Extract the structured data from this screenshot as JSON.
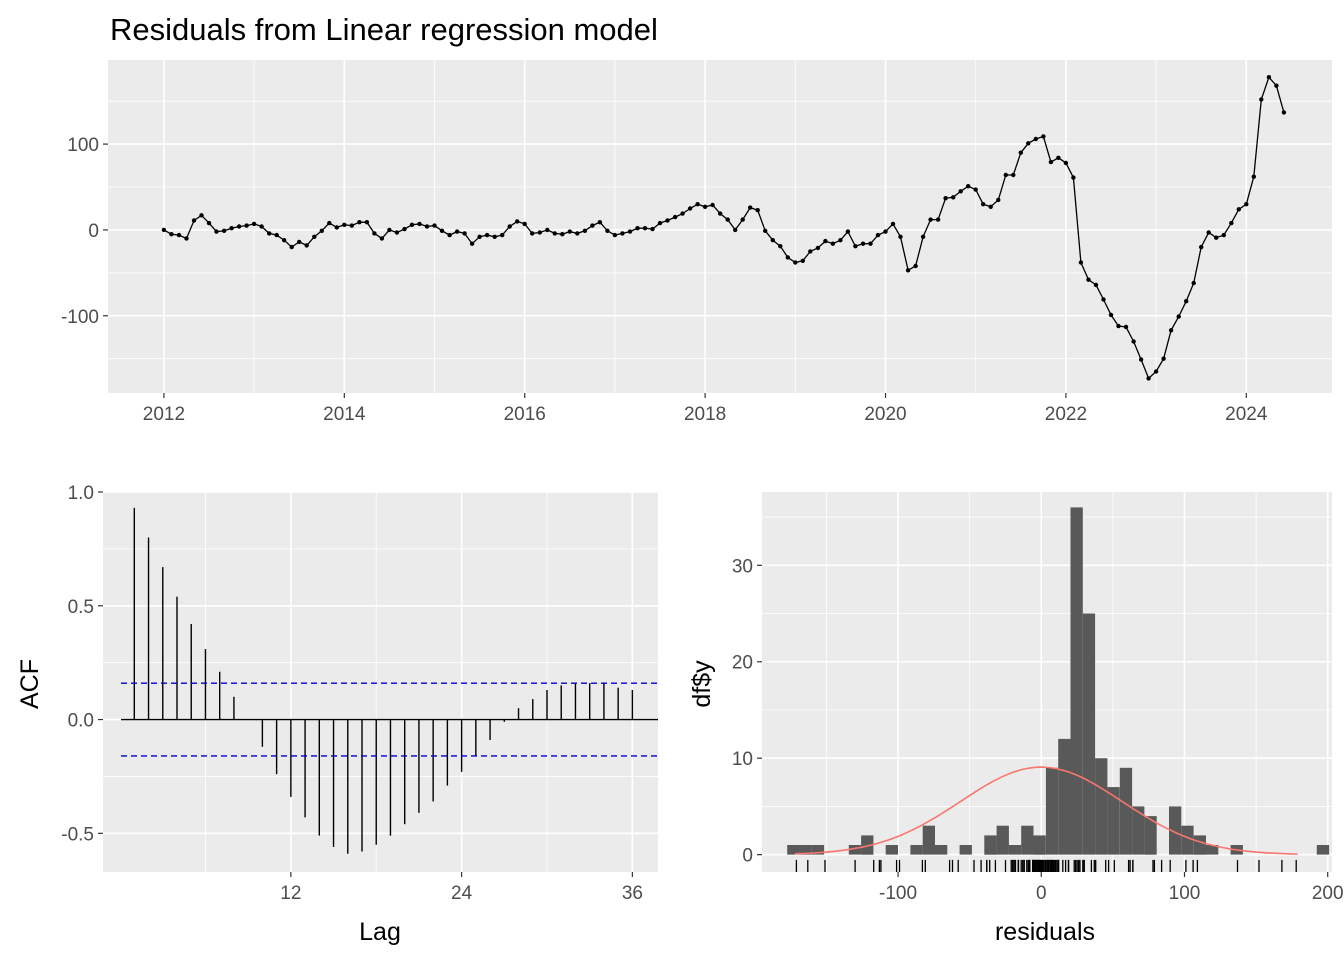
{
  "chart_data": [
    {
      "type": "line",
      "title": "Residuals from Linear regression model",
      "xlabel": "",
      "ylabel": "",
      "xlim": [
        2011.38,
        2024.95
      ],
      "ylim": [
        -190,
        198
      ],
      "x_ticks": [
        2012,
        2014,
        2016,
        2018,
        2020,
        2022,
        2024
      ],
      "x_tick_labels": [
        "2012",
        "2014",
        "2016",
        "2018",
        "2020",
        "2022",
        "2024"
      ],
      "y_ticks": [
        -100,
        0,
        100
      ],
      "y_tick_labels": [
        "-100",
        "0",
        "100"
      ],
      "grid": true,
      "series": [
        {
          "start": 2012,
          "frequency": 12,
          "values": [
            0,
            -5,
            -6,
            -10,
            11,
            17,
            8,
            -2,
            -1,
            2,
            4,
            5,
            7,
            4,
            -4,
            -6,
            -12,
            -20,
            -14,
            -18,
            -8,
            -1,
            8,
            3,
            6,
            5,
            9,
            9,
            -4,
            -10,
            0,
            -3,
            1,
            6,
            7,
            4,
            5,
            -1,
            -6,
            -2,
            -4,
            -16,
            -8,
            -6,
            -8,
            -6,
            4,
            10,
            7,
            -4,
            -3,
            0,
            -4,
            -5,
            -2,
            -4,
            -1,
            5,
            9,
            -1,
            -6,
            -4,
            -2,
            2,
            2,
            1,
            8,
            11,
            15,
            19,
            25,
            30,
            27,
            29,
            19,
            12,
            0,
            12,
            26,
            23,
            -1,
            -12,
            -19,
            -32,
            -38,
            -36,
            -25,
            -21,
            -13,
            -16,
            -12,
            -2,
            -19,
            -16,
            -16,
            -6,
            -2,
            7,
            -8,
            -47,
            -42,
            -8,
            12,
            12,
            37,
            38,
            45,
            51,
            47,
            30,
            27,
            35,
            64,
            64,
            90,
            101,
            106,
            109,
            79,
            84,
            78,
            61,
            -38,
            -58,
            -64,
            -81,
            -99,
            -112,
            -113,
            -130,
            -151,
            -173,
            -165,
            -150,
            -117,
            -101,
            -83,
            -62,
            -20,
            -3,
            -9,
            -6,
            8,
            24,
            30,
            62,
            152,
            178,
            168,
            137
          ]
        }
      ]
    },
    {
      "type": "bar",
      "title": "",
      "xlabel": "Lag",
      "ylabel": "ACF",
      "xlim": [
        -1.2,
        37.8
      ],
      "ylim": [
        -0.67,
        1.0
      ],
      "x_ticks": [
        12,
        24,
        36
      ],
      "x_tick_labels": [
        "12",
        "24",
        "36"
      ],
      "y_ticks": [
        -0.5,
        0.0,
        0.5,
        1.0
      ],
      "y_tick_labels": [
        "-0.5",
        "0.0",
        "0.5",
        "1.0"
      ],
      "ci": 0.16,
      "grid": true,
      "lags": [
        1,
        2,
        3,
        4,
        5,
        6,
        7,
        8,
        9,
        10,
        11,
        12,
        13,
        14,
        15,
        16,
        17,
        18,
        19,
        20,
        21,
        22,
        23,
        24,
        25,
        26,
        27,
        28,
        29,
        30,
        31,
        32,
        33,
        34,
        35,
        36
      ],
      "values": [
        0.93,
        0.8,
        0.67,
        0.54,
        0.42,
        0.31,
        0.21,
        0.1,
        0.0,
        -0.12,
        -0.24,
        -0.34,
        -0.43,
        -0.51,
        -0.56,
        -0.59,
        -0.58,
        -0.55,
        -0.51,
        -0.46,
        -0.41,
        -0.36,
        -0.29,
        -0.23,
        -0.16,
        -0.09,
        -0.01,
        0.05,
        0.09,
        0.13,
        0.15,
        0.16,
        0.16,
        0.16,
        0.14,
        0.13
      ]
    },
    {
      "type": "bar",
      "title": "",
      "xlabel": "residuals",
      "ylabel": "df$y",
      "xlim": [
        -195,
        203
      ],
      "ylim": [
        -1.8,
        37.6
      ],
      "x_ticks": [
        -100,
        0,
        100,
        200
      ],
      "x_tick_labels": [
        "-100",
        "0",
        "100",
        "200"
      ],
      "y_ticks": [
        0,
        10,
        20,
        30
      ],
      "y_tick_labels": [
        "0",
        "10",
        "20",
        "30"
      ],
      "grid": true,
      "bin_width": 8.6,
      "bin_start": -177.4,
      "counts": [
        1,
        1,
        1,
        0,
        0,
        1,
        2,
        0,
        1,
        0,
        1,
        3,
        1,
        0,
        1,
        0,
        2,
        3,
        1,
        3,
        2,
        9,
        12,
        36,
        25,
        10,
        7,
        9,
        5,
        4,
        0,
        5,
        3,
        2,
        1,
        0,
        1,
        0,
        0,
        0,
        0,
        0,
        0,
        1,
        0,
        0,
        0,
        0,
        1
      ],
      "normal_curve": {
        "mean": 0,
        "sd": 56.5,
        "scale": 1285,
        "color": "#F8766D"
      },
      "rug": [
        -171,
        -163,
        -151,
        -130,
        -117,
        -113,
        -112,
        -101,
        -99,
        -83,
        -81,
        -64,
        -62,
        -58,
        -47,
        -42,
        -38,
        -38,
        -36,
        -32,
        -25,
        -21,
        -20,
        -20,
        -19,
        -19,
        -18,
        -16,
        -16,
        -16,
        -14,
        -13,
        -12,
        -12,
        -12,
        -10,
        -10,
        -9,
        -8,
        -8,
        -8,
        -8,
        -6,
        -6,
        -6,
        -6,
        -6,
        -5,
        -5,
        -4,
        -4,
        -4,
        -4,
        -4,
        -4,
        -3,
        -3,
        -2,
        -2,
        -2,
        -2,
        -1,
        -1,
        -1,
        -1,
        0,
        0,
        0,
        1,
        1,
        2,
        2,
        3,
        4,
        4,
        4,
        5,
        5,
        5,
        6,
        6,
        7,
        7,
        7,
        8,
        8,
        8,
        9,
        9,
        10,
        11,
        11,
        12,
        12,
        12,
        15,
        17,
        19,
        19,
        23,
        24,
        25,
        26,
        27,
        27,
        29,
        30,
        30,
        35,
        37,
        38,
        45,
        47,
        51,
        61,
        62,
        64,
        64,
        78,
        79,
        84,
        90,
        101,
        106,
        109,
        137,
        152,
        168,
        178
      ]
    }
  ]
}
